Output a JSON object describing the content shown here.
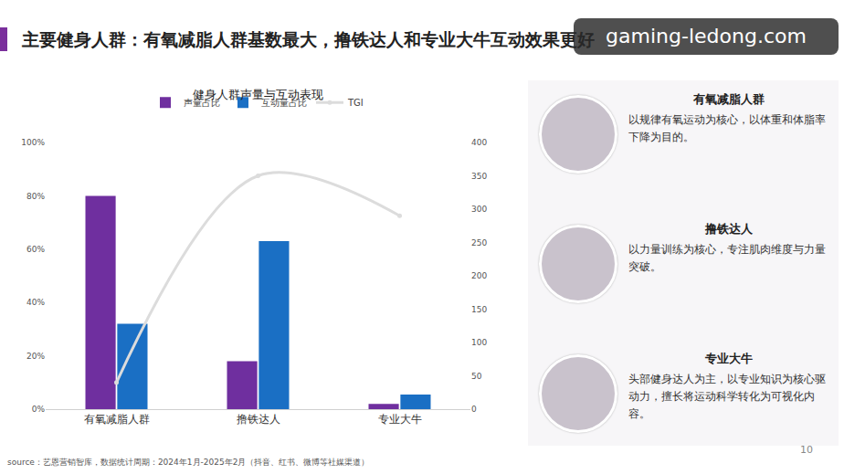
{
  "page": {
    "title": "主要健身人群：有氧减脂人群基数最大，撸铁达人和专业大牛互动效果更好",
    "watermark": "gaming-ledong.com",
    "source": "source：艺恩营销智库，数据统计周期：2024年1月-2025年2月（抖音、红书、微博等社媒渠道）",
    "page_number": "10"
  },
  "chart_data": {
    "type": "bar",
    "title": "健身人群声量与互动表现",
    "categories": [
      "有氧减脂人群",
      "撸铁达人",
      "专业大牛"
    ],
    "series": [
      {
        "name": "声量占比",
        "type": "bar",
        "color": "#6f2f9f",
        "values": [
          80,
          18,
          2
        ]
      },
      {
        "name": "互动量占比",
        "type": "bar",
        "color": "#1a6fc4",
        "values": [
          32,
          63,
          5.5
        ]
      },
      {
        "name": "TGI",
        "type": "line",
        "axis": "y2",
        "color": "#dcdcdc",
        "marker": "circle",
        "line_style": "solid",
        "values": [
          40,
          350,
          290
        ]
      }
    ],
    "ylim": [
      0,
      100
    ],
    "yticks": [
      {
        "value": 0,
        "label": "0%"
      },
      {
        "value": 20,
        "label": "20%"
      },
      {
        "value": 40,
        "label": "40%"
      },
      {
        "value": 60,
        "label": "60%"
      },
      {
        "value": 80,
        "label": "80%"
      },
      {
        "value": 100,
        "label": "100%"
      }
    ],
    "y2lim": [
      0,
      400
    ],
    "y2ticks": [
      0,
      50,
      100,
      150,
      200,
      250,
      300,
      350,
      400
    ],
    "grid": false,
    "legend": "top"
  },
  "groups": [
    {
      "title": "有氧减脂人群",
      "description": "以规律有氧运动为核心，以体重和体脂率下降为目的。"
    },
    {
      "title": "撸铁达人",
      "description": "以力量训练为核心，专注肌肉维度与力量突破。"
    },
    {
      "title": "专业大牛",
      "description": "头部健身达人为主，以专业知识为核心驱动力，擅长将运动科学转化为可视化内容。"
    }
  ]
}
